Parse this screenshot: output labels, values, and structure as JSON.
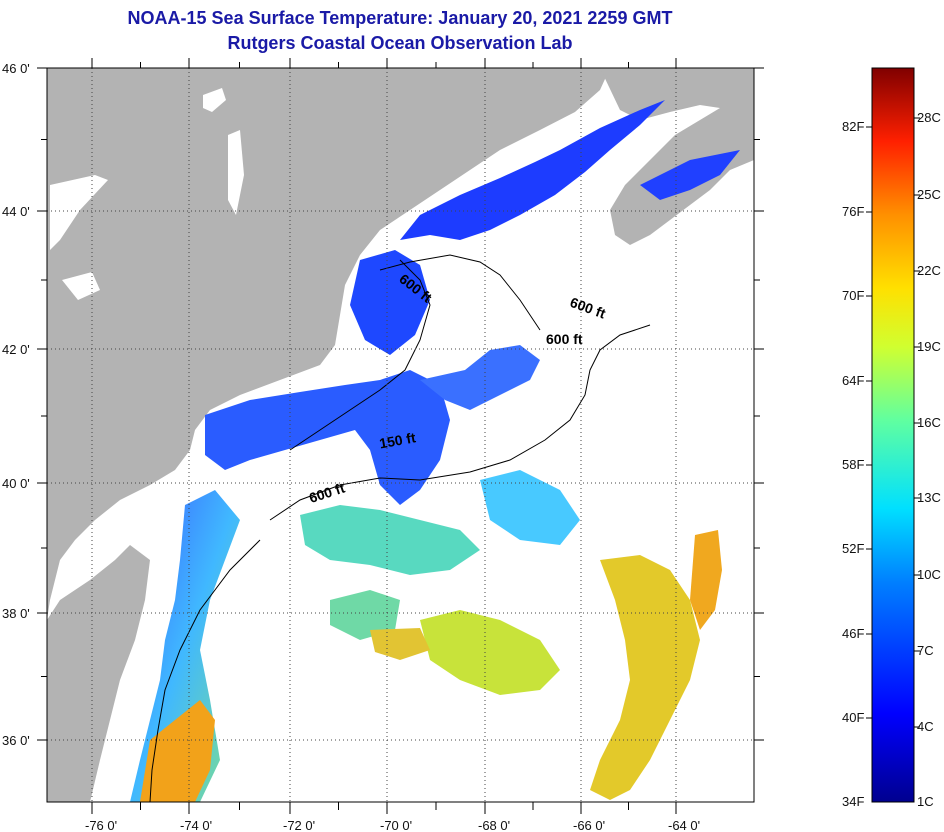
{
  "header": {
    "title": "NOAA-15 Sea Surface Temperature:  January 20, 2021 2259 GMT",
    "subtitle": "Rutgers Coastal Ocean Observation Lab"
  },
  "map": {
    "lat_labels": [
      "46 0'",
      "44 0'",
      "42 0'",
      "40 0'",
      "38 0'",
      "36 0'"
    ],
    "lon_labels": [
      "-76 0'",
      "-74 0'",
      "-72 0'",
      "-70 0'",
      "-68 0'",
      "-66 0'",
      "-64 0'"
    ],
    "contour_labels": [
      "600 ft",
      "600 ft",
      "600 ft",
      "150 ft",
      "600 ft"
    ],
    "colors": {
      "land": "#b3b3b3",
      "ocean_nodata": "#ffffff",
      "contour": "#000000"
    }
  },
  "colorbar": {
    "fahrenheit_labels": [
      "82F",
      "76F",
      "70F",
      "64F",
      "58F",
      "52F",
      "46F",
      "40F",
      "34F"
    ],
    "celsius_labels": [
      "28C",
      "25C",
      "22C",
      "19C",
      "16C",
      "13C",
      "10C",
      "7C",
      "4C",
      "1C"
    ]
  }
}
